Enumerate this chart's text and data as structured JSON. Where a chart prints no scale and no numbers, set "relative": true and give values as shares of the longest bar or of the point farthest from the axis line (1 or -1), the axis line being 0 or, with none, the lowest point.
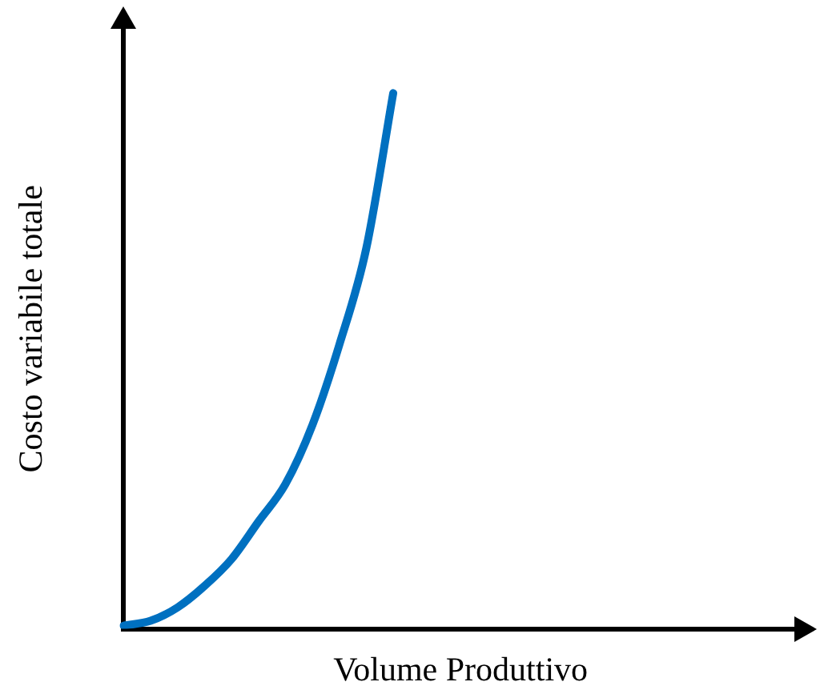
{
  "chart_data": {
    "type": "line",
    "relative": true,
    "xlabel": "Volume Produttivo",
    "ylabel": "Costo variabile totale",
    "categories": [
      null,
      null,
      null,
      null,
      null,
      null,
      null,
      null,
      null,
      null,
      null,
      null,
      null,
      null,
      null,
      null,
      null,
      null,
      null,
      null,
      null,
      null,
      null,
      null,
      null,
      null
    ],
    "series": [
      {
        "color": "#0070c0",
        "values": [
          0.006,
          0.015,
          0.04,
          0.08,
          0.13,
          0.2,
          0.27,
          0.38,
          0.53,
          0.71,
          1,
          null,
          null,
          null,
          null,
          null,
          null,
          null,
          null,
          null,
          null,
          null,
          null,
          null,
          null,
          null
        ]
      }
    ],
    "grid": false,
    "legend": false,
    "marker": "none",
    "line_style": "solid"
  }
}
